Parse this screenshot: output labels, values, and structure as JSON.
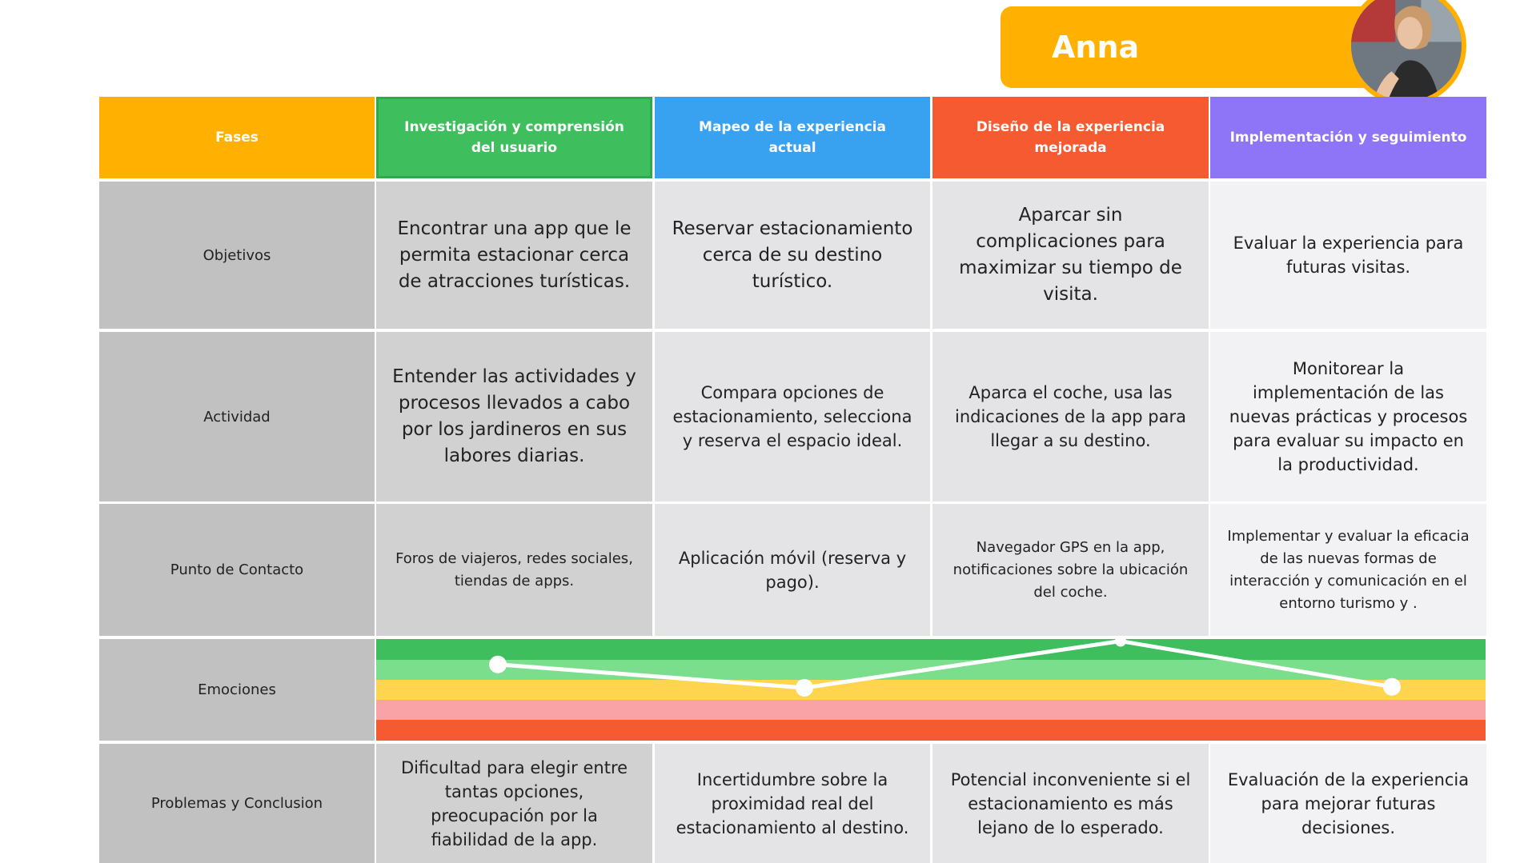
{
  "persona": {
    "name": "Anna",
    "avatar_icon": "woman-driving-photo-icon"
  },
  "colors": {
    "banner": "#FFB000",
    "phase1": "#3FBE5E",
    "phase2": "#39A2F0",
    "phase3": "#F55A31",
    "phase4": "#8E74F7",
    "label_bg": "#C2C1C2",
    "emotion_bands": [
      "#3FBE5E",
      "#7BDE8C",
      "#FFD54F",
      "#F9A3A6",
      "#F55A31"
    ]
  },
  "header": {
    "label": "Fases",
    "phases": [
      "Investigación y comprensión del usuario",
      "Mapeo de la experiencia actual",
      "Diseño de la experiencia mejorada",
      "Implementación y seguimiento"
    ]
  },
  "rows": {
    "objetivos": {
      "label": "Objetivos",
      "cells": [
        "Encontrar una app que le permita estacionar cerca de atracciones turísticas.",
        "Reservar estacionamiento cerca de su destino turístico.",
        "Aparcar sin complicaciones para maximizar su tiempo de visita.",
        "Evaluar la experiencia para futuras visitas."
      ]
    },
    "actividad": {
      "label": "Actividad",
      "cells": [
        "Entender las actividades y procesos llevados a cabo por los jardineros en sus labores diarias.",
        "Compara opciones de estacionamiento, selecciona y reserva el espacio ideal.",
        "Aparca el coche, usa las indicaciones de la app para llegar a su destino.",
        "Monitorear la implementación de las nuevas prácticas y procesos para evaluar su impacto en la productividad."
      ]
    },
    "contacto": {
      "label": "Punto de Contacto",
      "cells": [
        "Foros de viajeros, redes sociales, tiendas de apps.",
        "Aplicación móvil (reserva y pago).",
        "Navegador GPS en la app, notificaciones sobre la ubicación del coche.",
        "Implementar y evaluar la eficacia de las nuevas formas de interacción y comunicación en el entorno turismo y ."
      ]
    },
    "emociones": {
      "label": "Emociones"
    },
    "problemas": {
      "label": "Problemas y  Conclusion",
      "cells": [
        "Dificultad para elegir entre tantas opciones, preocupación por la fiabilidad de la app.",
        "Incertidumbre sobre la proximidad real del estacionamiento al destino.",
        "Potencial inconveniente si el estacionamiento es más lejano de lo esperado.",
        "Evaluación de la experiencia para mejorar futuras decisiones."
      ]
    }
  },
  "chart_data": {
    "type": "line",
    "categories": [
      "Investigación y comprensión del usuario",
      "Mapeo de la experiencia actual",
      "Diseño de la experiencia mejorada",
      "Implementación y seguimiento"
    ],
    "series": [
      {
        "values": [
          0.75,
          0.52,
          0.98,
          0.53
        ]
      }
    ],
    "ylim": [
      0,
      1
    ]
  }
}
